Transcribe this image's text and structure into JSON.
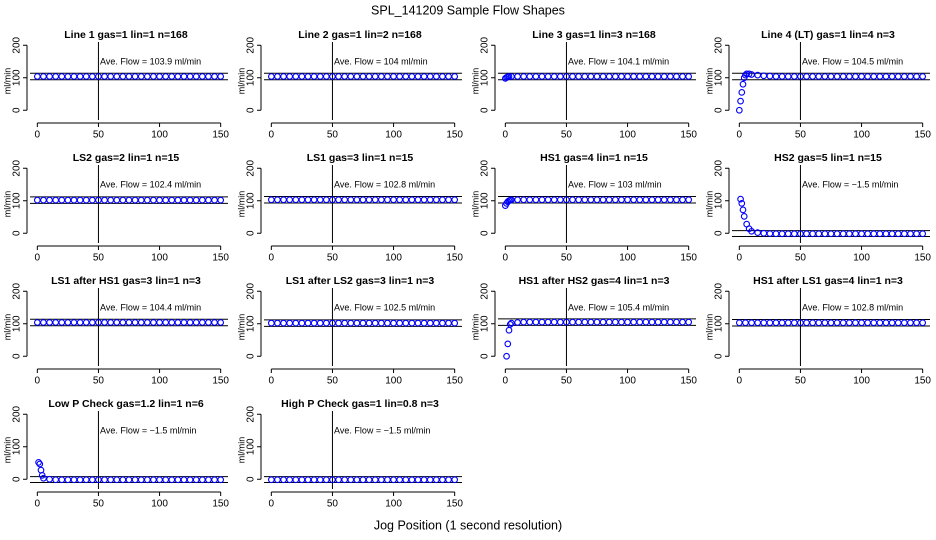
{
  "page": {
    "title": "SPL_141209  Sample Flow Shapes",
    "xlabel": "Jog Position (1 second resolution)"
  },
  "chart_data": [
    {
      "type": "scatter",
      "title": "Line 1 gas=1 lin=1 n=168",
      "ylabel": "ml/min",
      "annotation": "Ave. Flow = 103.9  ml/min",
      "color": "#0000ff",
      "x": [
        0,
        5,
        10,
        15,
        20,
        25,
        30,
        35,
        40,
        45,
        50,
        55,
        60,
        65,
        70,
        75,
        80,
        85,
        90,
        95,
        100,
        105,
        110,
        115,
        120,
        125,
        130,
        135,
        140,
        145,
        150
      ],
      "values": [
        104,
        104,
        104,
        104,
        104,
        104,
        104,
        104,
        104,
        104,
        104,
        104,
        104,
        104,
        104,
        104,
        104,
        104,
        104,
        104,
        104,
        104,
        104,
        104,
        104,
        104,
        104,
        104,
        104,
        104,
        104
      ],
      "xlim": [
        -6,
        156
      ],
      "ylim": [
        -30,
        210
      ],
      "xticks": [
        0,
        50,
        100,
        150
      ],
      "yticks": [
        0,
        100,
        200
      ],
      "hlines": [
        94,
        114
      ],
      "vlines": [
        50
      ]
    },
    {
      "type": "scatter",
      "title": "Line 2 gas=1 lin=2 n=168",
      "ylabel": "ml/min",
      "annotation": "Ave. Flow = 104  ml/min",
      "color": "#0000ff",
      "x": [
        0,
        5,
        10,
        15,
        20,
        25,
        30,
        35,
        40,
        45,
        50,
        55,
        60,
        65,
        70,
        75,
        80,
        85,
        90,
        95,
        100,
        105,
        110,
        115,
        120,
        125,
        130,
        135,
        140,
        145,
        150
      ],
      "values": [
        104,
        104,
        104,
        104,
        104,
        104,
        104,
        104,
        104,
        104,
        104,
        104,
        104,
        104,
        104,
        104,
        104,
        104,
        104,
        104,
        104,
        104,
        104,
        104,
        104,
        104,
        104,
        104,
        104,
        104,
        104
      ],
      "xlim": [
        -6,
        156
      ],
      "ylim": [
        -30,
        210
      ],
      "xticks": [
        0,
        50,
        100,
        150
      ],
      "yticks": [
        0,
        100,
        200
      ],
      "hlines": [
        94,
        114
      ],
      "vlines": [
        50
      ]
    },
    {
      "type": "scatter",
      "title": "Line 3 gas=1 lin=3 n=168",
      "ylabel": "ml/min",
      "annotation": "Ave. Flow = 104.1  ml/min",
      "color": "#0000ff",
      "x": [
        0,
        1,
        2,
        3,
        5,
        10,
        15,
        20,
        25,
        30,
        35,
        40,
        45,
        50,
        55,
        60,
        65,
        70,
        75,
        80,
        85,
        90,
        95,
        100,
        105,
        110,
        115,
        120,
        125,
        130,
        135,
        140,
        145,
        150
      ],
      "values": [
        98,
        101,
        103,
        104,
        104,
        104,
        104,
        104,
        104,
        104,
        104,
        104,
        104,
        104,
        104,
        104,
        104,
        104,
        104,
        104,
        104,
        104,
        104,
        104,
        104,
        104,
        104,
        104,
        104,
        104,
        104,
        104,
        104,
        104
      ],
      "xlim": [
        -6,
        156
      ],
      "ylim": [
        -30,
        210
      ],
      "xticks": [
        0,
        50,
        100,
        150
      ],
      "yticks": [
        0,
        100,
        200
      ],
      "hlines": [
        94,
        114
      ],
      "vlines": [
        50
      ]
    },
    {
      "type": "scatter",
      "title": "Line 4 (LT) gas=1 lin=4 n=3",
      "ylabel": "ml/min",
      "annotation": "Ave. Flow = 104.5  ml/min",
      "color": "#0000ff",
      "x": [
        0,
        1,
        2,
        3,
        4,
        5,
        6,
        8,
        10,
        15,
        20,
        25,
        30,
        35,
        40,
        45,
        50,
        55,
        60,
        65,
        70,
        75,
        80,
        85,
        90,
        95,
        100,
        105,
        110,
        115,
        120,
        125,
        130,
        135,
        140,
        145,
        150
      ],
      "values": [
        0,
        28,
        55,
        80,
        100,
        108,
        112,
        112,
        110,
        108,
        106,
        105,
        104,
        104,
        104,
        104,
        104,
        104,
        104,
        104,
        104,
        104,
        104,
        104,
        104,
        104,
        104,
        104,
        104,
        104,
        104,
        104,
        104,
        104,
        104,
        104,
        104
      ],
      "xlim": [
        -6,
        156
      ],
      "ylim": [
        -30,
        210
      ],
      "xticks": [
        0,
        50,
        100,
        150
      ],
      "yticks": [
        0,
        100,
        200
      ],
      "hlines": [
        94,
        114
      ],
      "vlines": [
        50
      ]
    },
    {
      "type": "scatter",
      "title": "LS2 gas=2 lin=1 n=15",
      "ylabel": "ml/min",
      "annotation": "Ave. Flow = 102.4  ml/min",
      "color": "#0000ff",
      "x": [
        0,
        5,
        10,
        15,
        20,
        25,
        30,
        35,
        40,
        45,
        50,
        55,
        60,
        65,
        70,
        75,
        80,
        85,
        90,
        95,
        100,
        105,
        110,
        115,
        120,
        125,
        130,
        135,
        140,
        145,
        150
      ],
      "values": [
        102,
        102,
        102,
        102,
        102,
        102,
        102,
        102,
        102,
        102,
        102,
        102,
        102,
        102,
        102,
        102,
        102,
        102,
        102,
        102,
        102,
        102,
        102,
        102,
        102,
        102,
        102,
        102,
        102,
        102,
        102
      ],
      "xlim": [
        -6,
        156
      ],
      "ylim": [
        -30,
        210
      ],
      "xticks": [
        0,
        50,
        100,
        150
      ],
      "yticks": [
        0,
        100,
        200
      ],
      "hlines": [
        92,
        112
      ],
      "vlines": [
        50
      ]
    },
    {
      "type": "scatter",
      "title": "LS1 gas=3 lin=1 n=15",
      "ylabel": "ml/min",
      "annotation": "Ave. Flow = 102.8  ml/min",
      "color": "#0000ff",
      "x": [
        0,
        5,
        10,
        15,
        20,
        25,
        30,
        35,
        40,
        45,
        50,
        55,
        60,
        65,
        70,
        75,
        80,
        85,
        90,
        95,
        100,
        105,
        110,
        115,
        120,
        125,
        130,
        135,
        140,
        145,
        150
      ],
      "values": [
        103,
        103,
        103,
        103,
        103,
        103,
        103,
        103,
        103,
        103,
        103,
        103,
        103,
        103,
        103,
        103,
        103,
        103,
        103,
        103,
        103,
        103,
        103,
        103,
        103,
        103,
        103,
        103,
        103,
        103,
        103
      ],
      "xlim": [
        -6,
        156
      ],
      "ylim": [
        -30,
        210
      ],
      "xticks": [
        0,
        50,
        100,
        150
      ],
      "yticks": [
        0,
        100,
        200
      ],
      "hlines": [
        93,
        113
      ],
      "vlines": [
        50
      ]
    },
    {
      "type": "scatter",
      "title": "HS1 gas=4 lin=1 n=15",
      "ylabel": "ml/min",
      "annotation": "Ave. Flow = 103  ml/min",
      "color": "#0000ff",
      "x": [
        0,
        1,
        2,
        3,
        4,
        5,
        10,
        15,
        20,
        25,
        30,
        35,
        40,
        45,
        50,
        55,
        60,
        65,
        70,
        75,
        80,
        85,
        90,
        95,
        100,
        105,
        110,
        115,
        120,
        125,
        130,
        135,
        140,
        145,
        150
      ],
      "values": [
        85,
        92,
        97,
        100,
        102,
        103,
        103,
        103,
        103,
        103,
        103,
        103,
        103,
        103,
        103,
        103,
        103,
        103,
        103,
        103,
        103,
        103,
        103,
        103,
        103,
        103,
        103,
        103,
        103,
        103,
        103,
        103,
        103,
        103,
        103
      ],
      "xlim": [
        -6,
        156
      ],
      "ylim": [
        -30,
        210
      ],
      "xticks": [
        0,
        50,
        100,
        150
      ],
      "yticks": [
        0,
        100,
        200
      ],
      "hlines": [
        93,
        113
      ],
      "vlines": [
        50
      ]
    },
    {
      "type": "scatter",
      "title": "HS2 gas=5 lin=1 n=15",
      "ylabel": "ml/min",
      "annotation": "Ave. Flow = −1.5  ml/min",
      "color": "#0000ff",
      "x": [
        1,
        2,
        3,
        4,
        6,
        8,
        10,
        15,
        20,
        25,
        30,
        35,
        40,
        45,
        50,
        55,
        60,
        65,
        70,
        75,
        80,
        85,
        90,
        95,
        100,
        105,
        110,
        115,
        120,
        125,
        130,
        135,
        140,
        145,
        150
      ],
      "values": [
        105,
        92,
        72,
        52,
        28,
        14,
        6,
        2,
        0,
        -1,
        -1.5,
        -1.5,
        -1.5,
        -1.5,
        -1.5,
        -1.5,
        -1.5,
        -1.5,
        -1.5,
        -1.5,
        -1.5,
        -1.5,
        -1.5,
        -1.5,
        -1.5,
        -1.5,
        -1.5,
        -1.5,
        -1.5,
        -1.5,
        -1.5,
        -1.5,
        -1.5,
        -1.5,
        -1.5
      ],
      "xlim": [
        -6,
        156
      ],
      "ylim": [
        -30,
        210
      ],
      "xticks": [
        0,
        50,
        100,
        150
      ],
      "yticks": [
        0,
        100,
        200
      ],
      "hlines": [
        -10,
        8
      ],
      "vlines": [
        50
      ]
    },
    {
      "type": "scatter",
      "title": "LS1 after HS1 gas=3 lin=1 n=3",
      "ylabel": "ml/min",
      "annotation": "Ave. Flow = 104.4  ml/min",
      "color": "#0000ff",
      "x": [
        0,
        5,
        10,
        15,
        20,
        25,
        30,
        35,
        40,
        45,
        50,
        55,
        60,
        65,
        70,
        75,
        80,
        85,
        90,
        95,
        100,
        105,
        110,
        115,
        120,
        125,
        130,
        135,
        140,
        145,
        150
      ],
      "values": [
        104,
        104,
        104,
        104,
        104,
        104,
        104,
        104,
        104,
        104,
        104,
        104,
        104,
        104,
        104,
        104,
        104,
        104,
        104,
        104,
        104,
        104,
        104,
        104,
        104,
        104,
        104,
        104,
        104,
        104,
        104
      ],
      "xlim": [
        -6,
        156
      ],
      "ylim": [
        -30,
        210
      ],
      "xticks": [
        0,
        50,
        100,
        150
      ],
      "yticks": [
        0,
        100,
        200
      ],
      "hlines": [
        94,
        114
      ],
      "vlines": [
        50
      ]
    },
    {
      "type": "scatter",
      "title": "LS1 after LS2 gas=3 lin=1 n=3",
      "ylabel": "ml/min",
      "annotation": "Ave. Flow = 102.5  ml/min",
      "color": "#0000ff",
      "x": [
        0,
        5,
        10,
        15,
        20,
        25,
        30,
        35,
        40,
        45,
        50,
        55,
        60,
        65,
        70,
        75,
        80,
        85,
        90,
        95,
        100,
        105,
        110,
        115,
        120,
        125,
        130,
        135,
        140,
        145,
        150
      ],
      "values": [
        102,
        102,
        102,
        102,
        102,
        102,
        102,
        102,
        102,
        102,
        102,
        102,
        102,
        102,
        102,
        102,
        102,
        102,
        102,
        102,
        102,
        102,
        102,
        102,
        102,
        102,
        102,
        102,
        102,
        102,
        102
      ],
      "xlim": [
        -6,
        156
      ],
      "ylim": [
        -30,
        210
      ],
      "xticks": [
        0,
        50,
        100,
        150
      ],
      "yticks": [
        0,
        100,
        200
      ],
      "hlines": [
        92,
        112
      ],
      "vlines": [
        50
      ]
    },
    {
      "type": "scatter",
      "title": "HS1 after HS2 gas=4 lin=1 n=3",
      "ylabel": "ml/min",
      "annotation": "Ave. Flow = 105.4  ml/min",
      "color": "#0000ff",
      "x": [
        1,
        2,
        3,
        4,
        5,
        10,
        15,
        20,
        25,
        30,
        35,
        40,
        45,
        50,
        55,
        60,
        65,
        70,
        75,
        80,
        85,
        90,
        95,
        100,
        105,
        110,
        115,
        120,
        125,
        130,
        135,
        140,
        145,
        150
      ],
      "values": [
        0,
        38,
        80,
        98,
        102,
        104,
        105,
        105,
        105,
        105,
        105,
        105,
        105,
        105,
        105,
        105,
        105,
        105,
        105,
        105,
        105,
        105,
        105,
        105,
        105,
        105,
        105,
        105,
        105,
        105,
        105,
        105,
        105,
        105
      ],
      "xlim": [
        -6,
        156
      ],
      "ylim": [
        -30,
        210
      ],
      "xticks": [
        0,
        50,
        100,
        150
      ],
      "yticks": [
        0,
        100,
        200
      ],
      "hlines": [
        95,
        115
      ],
      "vlines": [
        50
      ]
    },
    {
      "type": "scatter",
      "title": "HS1 after LS1 gas=4 lin=1 n=3",
      "ylabel": "ml/min",
      "annotation": "Ave. Flow = 102.8  ml/min",
      "color": "#0000ff",
      "x": [
        0,
        5,
        10,
        15,
        20,
        25,
        30,
        35,
        40,
        45,
        50,
        55,
        60,
        65,
        70,
        75,
        80,
        85,
        90,
        95,
        100,
        105,
        110,
        115,
        120,
        125,
        130,
        135,
        140,
        145,
        150
      ],
      "values": [
        103,
        103,
        103,
        103,
        103,
        103,
        103,
        103,
        103,
        103,
        103,
        103,
        103,
        103,
        103,
        103,
        103,
        103,
        103,
        103,
        103,
        103,
        103,
        103,
        103,
        103,
        103,
        103,
        103,
        103,
        103
      ],
      "xlim": [
        -6,
        156
      ],
      "ylim": [
        -30,
        210
      ],
      "xticks": [
        0,
        50,
        100,
        150
      ],
      "yticks": [
        0,
        100,
        200
      ],
      "hlines": [
        93,
        113
      ],
      "vlines": [
        50
      ]
    },
    {
      "type": "scatter",
      "title": "Low P Check gas=1.2 lin=1 n=6",
      "ylabel": "ml/min",
      "annotation": "Ave. Flow = −1.5  ml/min",
      "color": "#0000ff",
      "x": [
        1,
        2,
        3,
        4,
        5,
        10,
        15,
        20,
        25,
        30,
        35,
        40,
        45,
        50,
        55,
        60,
        65,
        70,
        75,
        80,
        85,
        90,
        95,
        100,
        105,
        110,
        115,
        120,
        125,
        130,
        135,
        140,
        145,
        150
      ],
      "values": [
        52,
        47,
        28,
        12,
        3,
        0,
        -1.5,
        -1.5,
        -1.5,
        -1.5,
        -1.5,
        -1.5,
        -1.5,
        -1.5,
        -1.5,
        -1.5,
        -1.5,
        -1.5,
        -1.5,
        -1.5,
        -1.5,
        -1.5,
        -1.5,
        -1.5,
        -1.5,
        -1.5,
        -1.5,
        -1.5,
        -1.5,
        -1.5,
        -1.5,
        -1.5,
        -1.5,
        -1.5
      ],
      "xlim": [
        -6,
        156
      ],
      "ylim": [
        -30,
        210
      ],
      "xticks": [
        0,
        50,
        100,
        150
      ],
      "yticks": [
        0,
        100,
        200
      ],
      "hlines": [
        -10,
        8
      ],
      "vlines": [
        50
      ]
    },
    {
      "type": "scatter",
      "title": "High P Check gas=1 lin=0.8 n=3",
      "ylabel": "ml/min",
      "annotation": "Ave. Flow = −1.5  ml/min",
      "color": "#0000ff",
      "x": [
        0,
        5,
        10,
        15,
        20,
        25,
        30,
        35,
        40,
        45,
        50,
        55,
        60,
        65,
        70,
        75,
        80,
        85,
        90,
        95,
        100,
        105,
        110,
        115,
        120,
        125,
        130,
        135,
        140,
        145,
        150
      ],
      "values": [
        -1.5,
        -1.5,
        -1.5,
        -1.5,
        -1.5,
        -1.5,
        -1.5,
        -1.5,
        -1.5,
        -1.5,
        -1.5,
        -1.5,
        -1.5,
        -1.5,
        -1.5,
        -1.5,
        -1.5,
        -1.5,
        -1.5,
        -1.5,
        -1.5,
        -1.5,
        -1.5,
        -1.5,
        -1.5,
        -1.5,
        -1.5,
        -1.5,
        -1.5,
        -1.5,
        -1.5
      ],
      "xlim": [
        -6,
        156
      ],
      "ylim": [
        -30,
        210
      ],
      "xticks": [
        0,
        50,
        100,
        150
      ],
      "yticks": [
        0,
        100,
        200
      ],
      "hlines": [
        -10,
        8
      ],
      "vlines": [
        50
      ]
    }
  ]
}
